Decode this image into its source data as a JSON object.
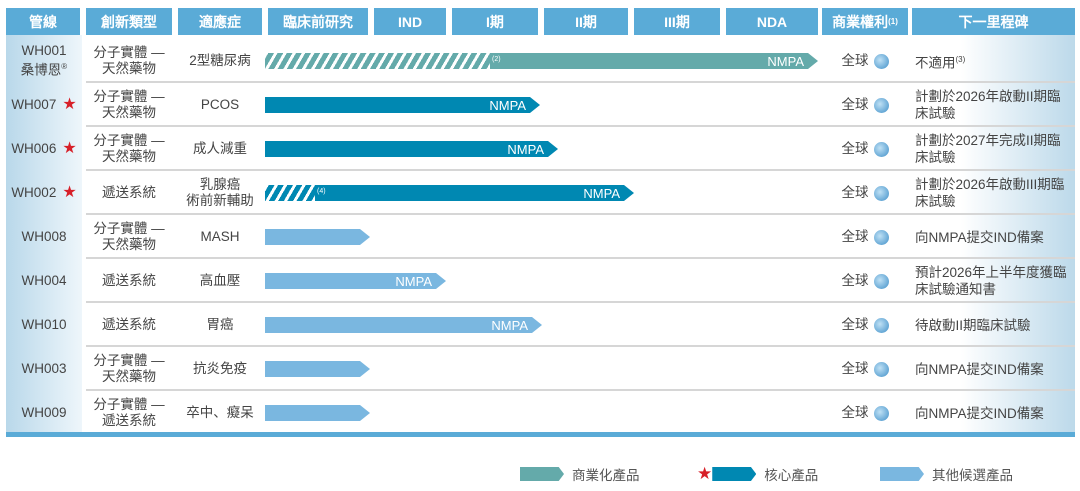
{
  "headers": [
    "管線",
    "創新類型",
    "適應症",
    "臨床前研究",
    "IND",
    "I期",
    "II期",
    "III期",
    "NDA",
    "商業權利",
    "下一里程碑"
  ],
  "header_sup": "(1)",
  "colors": {
    "commercial": "#64aaaa",
    "core": "#0088b2",
    "other": "#7ab7e0",
    "header": "#5aabd7",
    "star": "#d71f28"
  },
  "rows": [
    {
      "id": "WH001",
      "id2": "桑博恩",
      "id2_sup": "®",
      "type": "分子實體 — 天然藥物",
      "indication": "2型糖尿病",
      "stage": "NDA",
      "category": "commercial",
      "bar_label": "NMPA",
      "note": "(2)",
      "hatched_to": "I期",
      "rights": "全球",
      "milestone": "不適用",
      "milestone_sup": "(3)",
      "core": false
    },
    {
      "id": "WH007",
      "type": "分子實體 — 天然藥物",
      "indication": "PCOS",
      "stage": "I期",
      "category": "core",
      "bar_label": "NMPA",
      "rights": "全球",
      "milestone": "計劃於2026年啟動II期臨床試驗",
      "core": true
    },
    {
      "id": "WH006",
      "type": "分子實體 — 天然藥物",
      "indication": "成人減重",
      "stage": "I期+",
      "category": "core",
      "bar_label": "NMPA",
      "rights": "全球",
      "milestone": "計劃於2027年完成II期臨床試驗",
      "core": true
    },
    {
      "id": "WH002",
      "type": "遞送系統",
      "indication": "乳腺癌 術前新輔助",
      "stage": "II期",
      "category": "core",
      "bar_label": "NMPA",
      "note": "(4)",
      "hatched_to": "臨床前研究",
      "rights": "全球",
      "milestone": "計劃於2026年啟動III期臨床試驗",
      "core": true
    },
    {
      "id": "WH008",
      "type": "分子實體 — 天然藥物",
      "indication": "MASH",
      "stage": "臨床前研究",
      "category": "other",
      "bar_label": "",
      "rights": "全球",
      "milestone": "向NMPA提交IND備案",
      "core": false
    },
    {
      "id": "WH004",
      "type": "遞送系統",
      "indication": "高血壓",
      "stage": "IND",
      "category": "other",
      "bar_label": "NMPA",
      "rights": "全球",
      "milestone": "預計2026年上半年度獲臨床試驗通知書",
      "core": false
    },
    {
      "id": "WH010",
      "type": "遞送系統",
      "indication": "胃癌",
      "stage": "I期",
      "category": "other",
      "bar_label": "NMPA",
      "rights": "全球",
      "milestone": "待啟動II期臨床試驗",
      "core": false
    },
    {
      "id": "WH003",
      "type": "分子實體 — 天然藥物",
      "indication": "抗炎免疫",
      "stage": "臨床前研究",
      "category": "other",
      "bar_label": "",
      "rights": "全球",
      "milestone": "向NMPA提交IND備案",
      "core": false
    },
    {
      "id": "WH009",
      "type": "分子實體 — 遞送系統",
      "indication": "卒中、癡呆",
      "stage": "臨床前研究",
      "category": "other",
      "bar_label": "",
      "rights": "全球",
      "milestone": "向NMPA提交IND備案",
      "core": false
    }
  ],
  "legend": [
    "商業化產品",
    "核心產品",
    "其他候選產品"
  ]
}
